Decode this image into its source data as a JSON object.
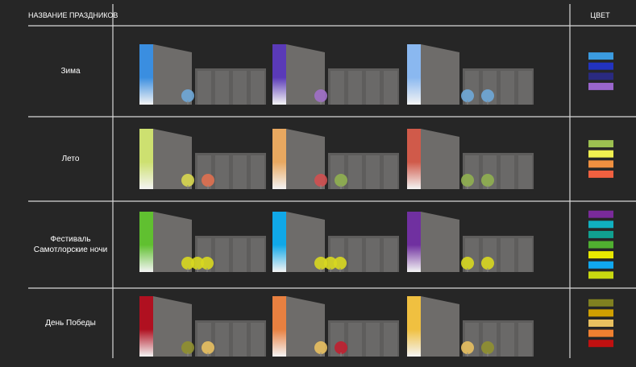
{
  "header": {
    "title": "НАЗВАНИЕ ПРАЗДНИКОВ",
    "color_title": "ЦВЕТ"
  },
  "rows": [
    {
      "label": "Зима",
      "buildings": [
        {
          "accent": "#3a8ee0",
          "trees": [
            "#6fa8d8"
          ]
        },
        {
          "accent": "#5a3ab8",
          "trees": [
            "#a070c8"
          ]
        },
        {
          "accent": "#8ab8f0",
          "trees": [
            "#6fa8d8",
            "#6fa8d8"
          ]
        }
      ],
      "colors": [
        "#3b9be0",
        "#2233c0",
        "#2a2a80",
        "#9a66cc"
      ]
    },
    {
      "label": "Лето",
      "buildings": [
        {
          "accent": "#cde070",
          "trees": [
            "#d8d850",
            "#e07050"
          ]
        },
        {
          "accent": "#e8a860",
          "trees": [
            "#d05050",
            "#90b050"
          ]
        },
        {
          "accent": "#d05a4a",
          "trees": [
            "#90b050",
            "#90b050"
          ]
        }
      ],
      "colors": [
        "#9cc050",
        "#f0f050",
        "#f09040",
        "#f06040"
      ]
    },
    {
      "label": "Фестиваль Самотлорские ночи",
      "buildings": [
        {
          "accent": "#60c030",
          "trees": [
            "#d8d820",
            "#d8d820",
            "#d8d820"
          ]
        },
        {
          "accent": "#10a8e8",
          "trees": [
            "#d8d820",
            "#d8d820",
            "#d8d820"
          ]
        },
        {
          "accent": "#7030a0",
          "trees": [
            "#d8d820",
            "#d8d820"
          ]
        }
      ],
      "colors": [
        "#7a2a9a",
        "#10b0c0",
        "#10a090",
        "#50b030",
        "#e8e800",
        "#10a8f0",
        "#c8d810"
      ]
    },
    {
      "label": "День Победы",
      "buildings": [
        {
          "accent": "#b01020",
          "trees": [
            "#909030",
            "#e8c060"
          ]
        },
        {
          "accent": "#e88040",
          "trees": [
            "#e8c060",
            "#c02030"
          ]
        },
        {
          "accent": "#f0c040",
          "trees": [
            "#e8c060",
            "#909030"
          ]
        }
      ],
      "colors": [
        "#808020",
        "#d0a000",
        "#e8c060",
        "#f08030",
        "#c01010"
      ]
    }
  ]
}
